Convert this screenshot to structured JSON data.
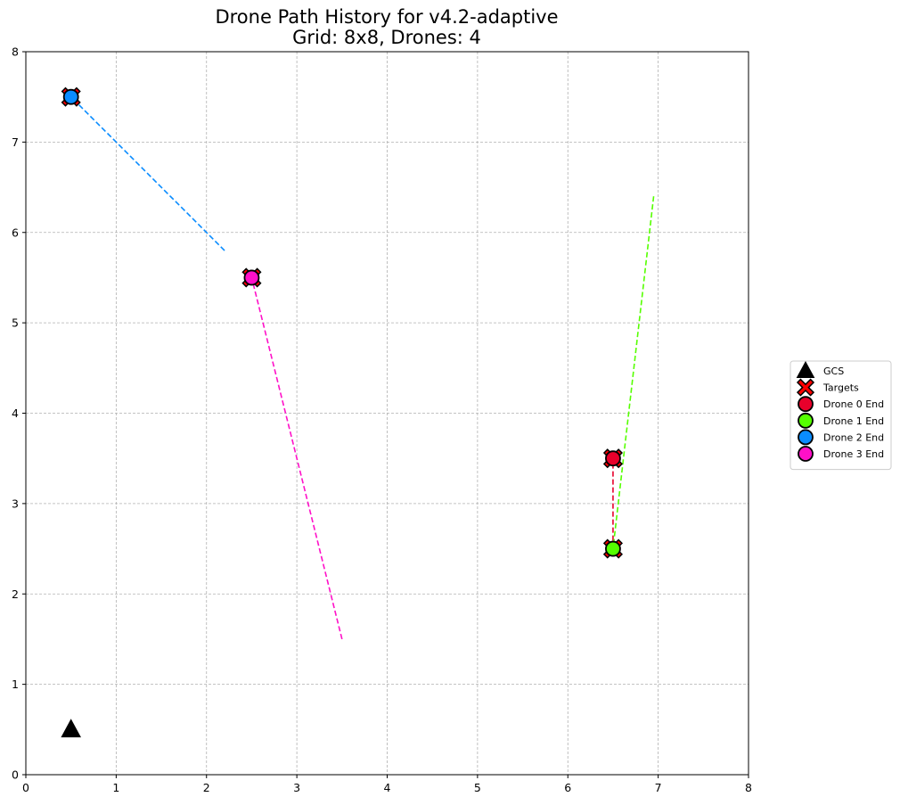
{
  "chart_data": {
    "type": "scatter",
    "title": "Drone Path History for v4.2-adaptive",
    "subtitle": "Grid: 8x8, Drones: 4",
    "xlabel": "",
    "ylabel": "",
    "xlim": [
      0,
      8
    ],
    "ylim": [
      0,
      8
    ],
    "xticks": [
      "0",
      "1",
      "2",
      "3",
      "4",
      "5",
      "6",
      "7",
      "8"
    ],
    "yticks": [
      "0",
      "1",
      "2",
      "3",
      "4",
      "5",
      "6",
      "7",
      "8"
    ],
    "grid": true,
    "legend_position": "right",
    "gcs": {
      "x": 0.5,
      "y": 0.5,
      "color": "#000000"
    },
    "targets": {
      "color": "#ff0000",
      "points": [
        {
          "x": 0.5,
          "y": 7.5
        },
        {
          "x": 2.5,
          "y": 5.5
        },
        {
          "x": 6.5,
          "y": 3.5
        },
        {
          "x": 6.5,
          "y": 2.5
        }
      ]
    },
    "drones": [
      {
        "name": "Drone 0 End",
        "color": "#e8002b",
        "path": [
          {
            "x": 6.5,
            "y": 2.5
          },
          {
            "x": 6.5,
            "y": 3.5
          }
        ],
        "end": {
          "x": 6.5,
          "y": 3.5
        }
      },
      {
        "name": "Drone 1 End",
        "color": "#55ff00",
        "path": [
          {
            "x": 6.95,
            "y": 6.4
          },
          {
            "x": 6.5,
            "y": 2.5
          }
        ],
        "end": {
          "x": 6.5,
          "y": 2.5
        }
      },
      {
        "name": "Drone 2 End",
        "color": "#0a8cff",
        "path": [
          {
            "x": 2.2,
            "y": 5.8
          },
          {
            "x": 0.5,
            "y": 7.5
          }
        ],
        "end": {
          "x": 0.5,
          "y": 7.5
        }
      },
      {
        "name": "Drone 3 End",
        "color": "#ff10c8",
        "path": [
          {
            "x": 3.5,
            "y": 1.5
          },
          {
            "x": 2.5,
            "y": 5.5
          }
        ],
        "end": {
          "x": 2.5,
          "y": 5.5
        }
      }
    ],
    "legend": [
      {
        "label": "GCS",
        "marker": "triangle",
        "color": "#000000"
      },
      {
        "label": "Targets",
        "marker": "x",
        "color": "#ff0000"
      },
      {
        "label": "Drone 0 End",
        "marker": "circle",
        "color": "#e8002b"
      },
      {
        "label": "Drone 1 End",
        "marker": "circle",
        "color": "#55ff00"
      },
      {
        "label": "Drone 2 End",
        "marker": "circle",
        "color": "#0a8cff"
      },
      {
        "label": "Drone 3 End",
        "marker": "circle",
        "color": "#ff10c8"
      }
    ]
  }
}
